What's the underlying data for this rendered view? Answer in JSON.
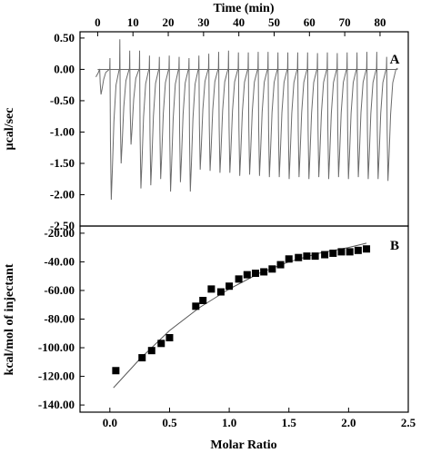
{
  "chart_data": [
    {
      "panel": "A",
      "type": "line",
      "xlabel": "Time (min)",
      "ylabel": "µcal/sec",
      "xlim": [
        -5,
        88
      ],
      "ylim": [
        -2.5,
        0.6
      ],
      "x_ticks": [
        0,
        10,
        20,
        30,
        40,
        50,
        60,
        70,
        80
      ],
      "y_ticks": [
        0.5,
        0.0,
        -0.5,
        -1.0,
        -1.5,
        -2.0,
        -2.5
      ],
      "y_tick_labels": [
        "0.50",
        "0.00",
        "-0.50",
        "-1.00",
        "-1.50",
        "-2.00",
        "-2.50"
      ],
      "x_axis_position": "top",
      "baseline": 0.0,
      "injection_times": [
        0.5,
        3.4,
        6.2,
        9.0,
        11.8,
        14.6,
        17.4,
        20.2,
        23.0,
        25.8,
        28.6,
        31.4,
        34.2,
        37.0,
        39.8,
        42.6,
        45.4,
        48.2,
        51.0,
        53.8,
        56.6,
        59.4,
        62.2,
        65.0,
        67.8,
        70.6,
        73.4,
        76.2,
        79.0,
        81.8
      ],
      "peak_minima": [
        -0.4,
        -2.08,
        -1.5,
        -1.2,
        -1.9,
        -1.85,
        -1.75,
        -1.95,
        -1.8,
        -1.95,
        -1.6,
        -1.62,
        -1.65,
        -1.65,
        -1.7,
        -1.68,
        -1.7,
        -1.72,
        -1.72,
        -1.75,
        -1.72,
        -1.75,
        -1.72,
        -1.75,
        -1.72,
        -1.75,
        -1.72,
        -1.75,
        -1.75,
        -1.78
      ],
      "peak_maxima": [
        0.0,
        0.18,
        0.48,
        0.3,
        0.3,
        0.22,
        0.2,
        0.22,
        0.2,
        0.18,
        0.22,
        0.25,
        0.28,
        0.3,
        0.27,
        0.27,
        0.28,
        0.28,
        0.27,
        0.27,
        0.27,
        0.27,
        0.26,
        0.27,
        0.26,
        0.27,
        0.27,
        0.28,
        0.28,
        0.2
      ],
      "grid": false
    },
    {
      "panel": "B",
      "type": "scatter",
      "xlabel": "Molar Ratio",
      "ylabel": "kcal/mol of injectant",
      "xlim": [
        -0.25,
        2.5
      ],
      "ylim": [
        -145,
        -15
      ],
      "x_ticks": [
        0.0,
        0.5,
        1.0,
        1.5,
        2.0,
        2.5
      ],
      "x_tick_labels": [
        "0.0",
        "0.5",
        "1.0",
        "1.5",
        "2.0",
        "2.5"
      ],
      "y_ticks": [
        -20,
        -40,
        -60,
        -80,
        -100,
        -120,
        -140
      ],
      "y_tick_labels": [
        "-20.00",
        "-40.00",
        "-60.00",
        "-80.00",
        "-100.00",
        "-120.00",
        "-140.00"
      ],
      "points": {
        "x": [
          0.05,
          0.27,
          0.35,
          0.43,
          0.5,
          0.72,
          0.78,
          0.85,
          0.93,
          1.0,
          1.08,
          1.15,
          1.22,
          1.29,
          1.36,
          1.43,
          1.5,
          1.58,
          1.65,
          1.72,
          1.8,
          1.87,
          1.94,
          2.01,
          2.08,
          2.15
        ],
        "y": [
          -116,
          -107,
          -102,
          -97,
          -93,
          -71,
          -67,
          -59,
          -61,
          -57,
          -52,
          -49,
          -48,
          -47,
          -45,
          -42,
          -38,
          -37,
          -36,
          -36,
          -35,
          -34,
          -33,
          -33,
          -32,
          -31
        ]
      },
      "fit_line": {
        "x": [
          0.03,
          0.25,
          0.5,
          0.75,
          1.0,
          1.25,
          1.5,
          1.75,
          2.0,
          2.15
        ],
        "y": [
          -128,
          -108,
          -88,
          -72,
          -59,
          -48,
          -40,
          -34,
          -30,
          -27
        ]
      },
      "grid": false
    }
  ],
  "panel_labels": {
    "a": "A",
    "b": "B"
  }
}
